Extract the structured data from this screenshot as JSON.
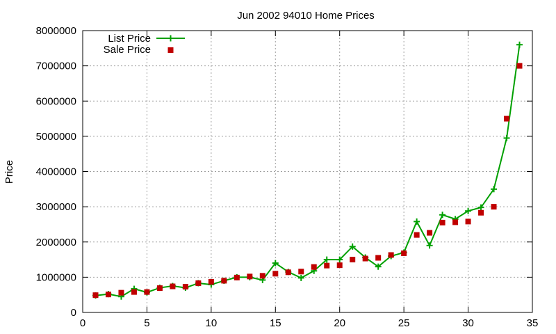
{
  "chart_data": {
    "type": "line",
    "title": "Jun 2002 94010 Home Prices",
    "xlabel": "",
    "ylabel": "Price",
    "xlim": [
      0,
      35
    ],
    "ylim": [
      0,
      8000000
    ],
    "xticks": [
      0,
      5,
      10,
      15,
      20,
      25,
      30,
      35
    ],
    "yticks": [
      0,
      1000000,
      2000000,
      3000000,
      4000000,
      5000000,
      6000000,
      7000000,
      8000000
    ],
    "grid": true,
    "legend_position": "top-left",
    "series": [
      {
        "name": "List Price",
        "style": "linespoints",
        "color": "#00a000",
        "marker": "plus",
        "x": [
          1,
          2,
          3,
          4,
          5,
          6,
          7,
          8,
          9,
          10,
          11,
          12,
          13,
          14,
          15,
          16,
          17,
          18,
          19,
          20,
          21,
          22,
          23,
          24,
          25,
          26,
          27,
          28,
          29,
          30,
          31,
          32,
          33,
          34
        ],
        "y": [
          480000,
          520000,
          450000,
          670000,
          570000,
          700000,
          750000,
          700000,
          830000,
          790000,
          900000,
          1000000,
          1000000,
          920000,
          1400000,
          1150000,
          980000,
          1180000,
          1500000,
          1500000,
          1870000,
          1560000,
          1300000,
          1600000,
          1700000,
          2580000,
          1900000,
          2770000,
          2650000,
          2880000,
          2980000,
          3500000,
          4950000,
          7600000
        ]
      },
      {
        "name": "Sale Price",
        "style": "points",
        "color": "#c00000",
        "marker": "square",
        "x": [
          1,
          2,
          3,
          4,
          5,
          6,
          7,
          8,
          9,
          10,
          11,
          12,
          13,
          14,
          15,
          16,
          17,
          18,
          19,
          20,
          21,
          22,
          23,
          24,
          25,
          26,
          27,
          28,
          29,
          30,
          31,
          32,
          33,
          34
        ],
        "y": [
          490000,
          510000,
          560000,
          580000,
          580000,
          690000,
          740000,
          730000,
          830000,
          870000,
          900000,
          990000,
          1020000,
          1040000,
          1100000,
          1140000,
          1160000,
          1290000,
          1330000,
          1340000,
          1500000,
          1530000,
          1550000,
          1630000,
          1680000,
          2200000,
          2260000,
          2550000,
          2560000,
          2580000,
          2830000,
          3000000,
          5500000,
          7000000
        ]
      }
    ]
  }
}
